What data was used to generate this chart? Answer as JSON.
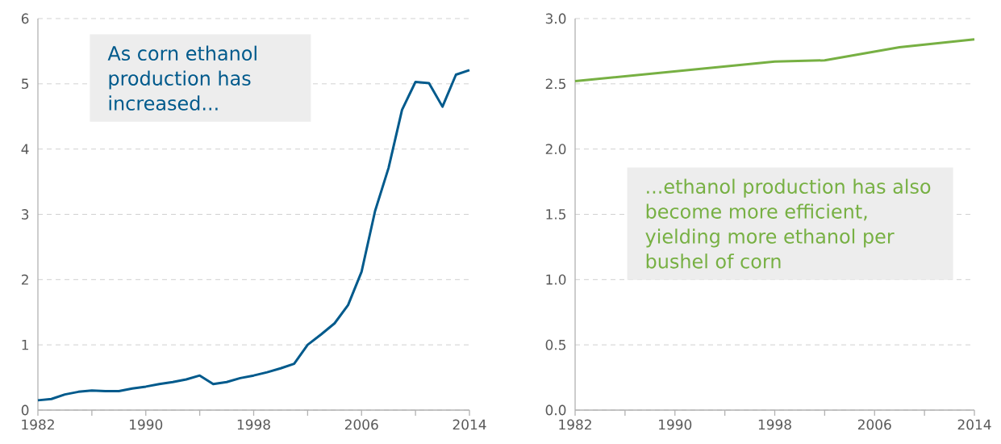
{
  "chart_data": [
    {
      "type": "line",
      "color": "#005a8c",
      "x": [
        1982,
        1983,
        1984,
        1985,
        1986,
        1987,
        1988,
        1989,
        1990,
        1991,
        1992,
        1993,
        1994,
        1995,
        1996,
        1997,
        1998,
        1999,
        2000,
        2001,
        2002,
        2003,
        2004,
        2005,
        2006,
        2007,
        2008,
        2009,
        2010,
        2011,
        2012,
        2013,
        2014
      ],
      "values": [
        0.15,
        0.17,
        0.24,
        0.28,
        0.3,
        0.29,
        0.29,
        0.33,
        0.36,
        0.4,
        0.43,
        0.47,
        0.53,
        0.4,
        0.43,
        0.49,
        0.53,
        0.58,
        0.64,
        0.71,
        1.0,
        1.16,
        1.33,
        1.61,
        2.12,
        3.05,
        3.71,
        4.6,
        5.03,
        5.01,
        4.65,
        5.14,
        5.21
      ],
      "xlim": [
        1982,
        2014
      ],
      "xticks": [
        1982,
        {
          "value": 1986,
          "label": null
        },
        1990,
        {
          "value": 1994,
          "label": null
        },
        1998,
        {
          "value": 2002,
          "label": null
        },
        2006,
        {
          "value": 2010,
          "label": null
        },
        2014
      ],
      "ylim": [
        0,
        6
      ],
      "yticks": [
        0,
        1,
        2,
        3,
        4,
        5,
        6
      ],
      "grid": "y",
      "annotations": [
        "As corn ethanol production has increased..."
      ]
    },
    {
      "type": "line",
      "color": "#77b043",
      "x": [
        1982,
        1998,
        2002,
        2008,
        2014
      ],
      "values": [
        2.52,
        2.67,
        2.68,
        2.78,
        2.84
      ],
      "xlim": [
        1982,
        2014
      ],
      "xticks": [
        1982,
        {
          "value": 1986,
          "label": null
        },
        1990,
        {
          "value": 1994,
          "label": null
        },
        1998,
        {
          "value": 2002,
          "label": null
        },
        2006,
        {
          "value": 2010,
          "label": null
        },
        2014
      ],
      "ylim": [
        0,
        3
      ],
      "yticks": [
        {
          "value": 0,
          "label": "0.0"
        },
        0.5,
        {
          "value": 1,
          "label": "1.0"
        },
        1.5,
        {
          "value": 2,
          "label": "2.0"
        },
        2.5,
        {
          "value": 3,
          "label": "3.0"
        }
      ],
      "grid": "y",
      "annotations": [
        "...ethanol production has also become more efficient, yielding more ethanol per bushel of corn"
      ]
    }
  ]
}
